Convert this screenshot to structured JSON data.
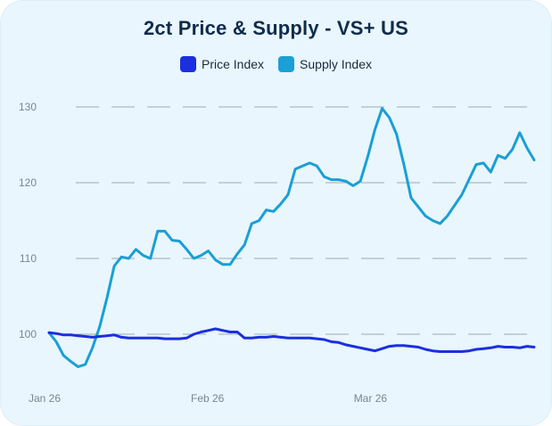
{
  "chart_data": {
    "type": "line",
    "title": "2ct Price & Supply - VS+ US",
    "legend": {
      "placement": "top-center",
      "entries": [
        {
          "label": "Price Index",
          "color": "#1b2fe0"
        },
        {
          "label": "Supply Index",
          "color": "#1a9fd6"
        }
      ]
    },
    "grid": {
      "horizontal": true,
      "dashed": true,
      "vertical": false
    },
    "x_ticks": [
      "Jan 26",
      "Feb 26",
      "Mar 26"
    ],
    "xlim": [
      0,
      67
    ],
    "x_tick_positions": [
      0,
      22.5,
      45
    ],
    "ylim": [
      95,
      132
    ],
    "y_ticks": [
      100,
      110,
      120,
      130
    ],
    "series": [
      {
        "name": "Price Index",
        "color": "#1b2fe0",
        "values": [
          100.2,
          100.1,
          99.9,
          99.9,
          99.8,
          99.7,
          99.6,
          99.7,
          99.8,
          99.9,
          99.6,
          99.5,
          99.5,
          99.5,
          99.5,
          99.5,
          99.4,
          99.4,
          99.4,
          99.5,
          100.0,
          100.3,
          100.5,
          100.7,
          100.5,
          100.3,
          100.3,
          99.5,
          99.5,
          99.6,
          99.6,
          99.7,
          99.6,
          99.5,
          99.5,
          99.5,
          99.5,
          99.4,
          99.3,
          99.0,
          98.9,
          98.6,
          98.4,
          98.2,
          98.0,
          97.8,
          98.1,
          98.4,
          98.5,
          98.5,
          98.4,
          98.3,
          98.0,
          97.8,
          97.7,
          97.7,
          97.7,
          97.7,
          97.8,
          98.0,
          98.1,
          98.2,
          98.4,
          98.3,
          98.3,
          98.2,
          98.4,
          98.3
        ]
      },
      {
        "name": "Supply Index",
        "color": "#1a9fd6",
        "values": [
          100.2,
          99.0,
          97.2,
          96.4,
          95.7,
          96.0,
          98.2,
          101.0,
          104.8,
          109.0,
          110.2,
          110.0,
          111.2,
          110.4,
          110.0,
          113.6,
          113.6,
          112.4,
          112.3,
          111.2,
          110.0,
          110.4,
          111.0,
          109.8,
          109.2,
          109.2,
          110.6,
          111.8,
          114.6,
          115.0,
          116.4,
          116.2,
          117.2,
          118.4,
          121.8,
          122.2,
          122.6,
          122.2,
          120.8,
          120.4,
          120.4,
          120.2,
          119.6,
          120.2,
          123.4,
          127.0,
          129.8,
          128.6,
          126.4,
          122.4,
          118.0,
          116.8,
          115.6,
          115.0,
          114.6,
          115.6,
          117.0,
          118.4,
          120.4,
          122.4,
          122.6,
          121.4,
          123.6,
          123.2,
          124.4,
          126.6,
          124.6,
          123.0
        ]
      }
    ]
  }
}
